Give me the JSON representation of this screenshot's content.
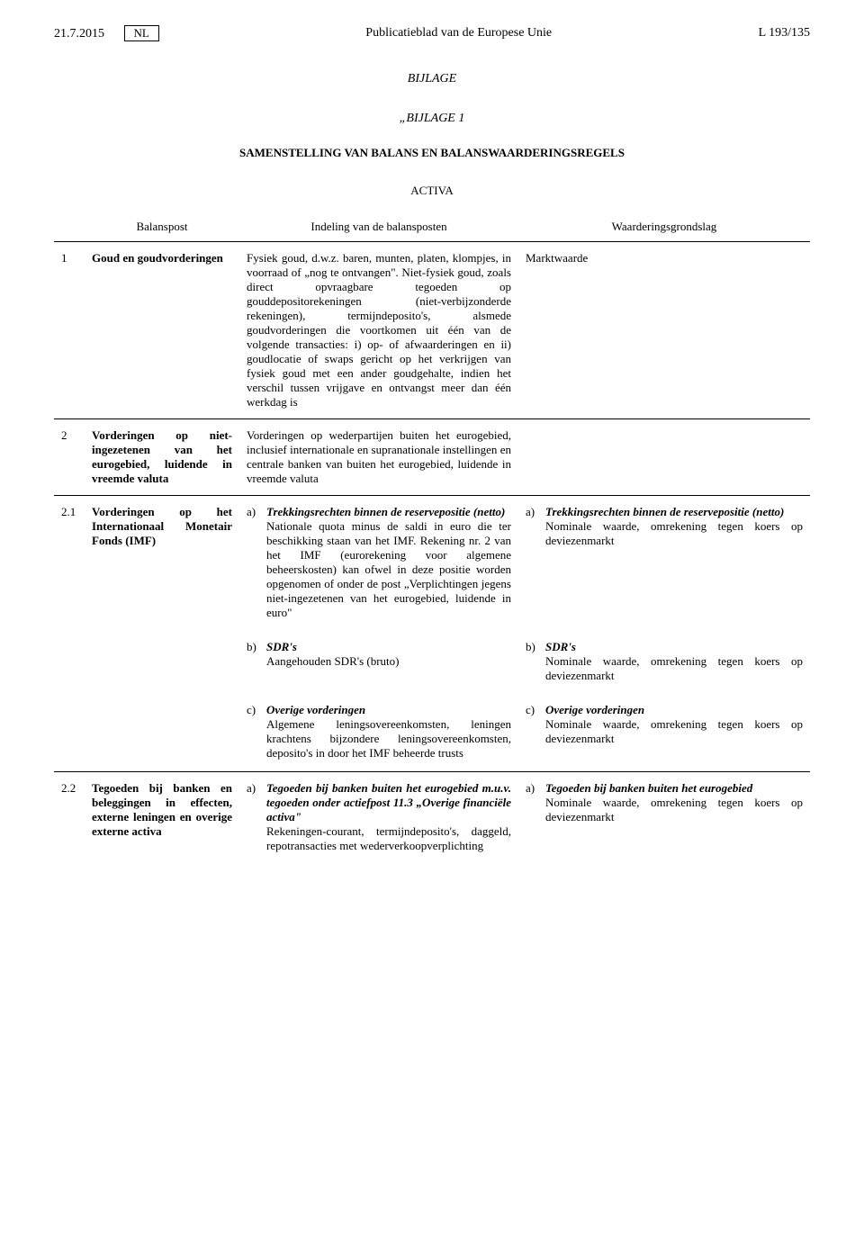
{
  "header": {
    "date": "21.7.2015",
    "lang": "NL",
    "journal": "Publicatieblad van de Europese Unie",
    "ref": "L 193/135"
  },
  "annex": "BIJLAGE",
  "annex_quote": "„BIJLAGE 1",
  "section_title": "SAMENSTELLING VAN BALANS EN BALANSWAARDERINGSREGELS",
  "activa": "ACTIVA",
  "thead": {
    "c1": "Balanspost",
    "c2": "Indeling van de balansposten",
    "c3": "Waarderingsgrondslag"
  },
  "rows": {
    "r1": {
      "num": "1",
      "bp": "Goud en goudvorderingen",
      "ind": "Fysiek goud, d.w.z. baren, munten, platen, klompjes, in voorraad of „nog te ontvangen\". Niet-fysiek goud, zoals direct opvraagbare tegoeden op gouddepositorekeningen (niet-verbijzonderde rekeningen), termijndeposito's, alsmede goudvorderingen die voortkomen uit één van de volgende transacties: i) op- of afwaarderingen en ii) goudlocatie of swaps gericht op het verkrijgen van fysiek goud met een ander goudgehalte, indien het verschil tussen vrijgave en ontvangst meer dan één werkdag is",
      "wg": "Marktwaarde"
    },
    "r2": {
      "num": "2",
      "bp": "Vorderingen op niet-ingezetenen van het eurogebied, luidende in vreemde valuta",
      "ind": "Vorderingen op wederpartijen buiten het eurogebied, inclusief internationale en supranationale instellingen en centrale banken van buiten het eurogebied, luidende in vreemde valuta",
      "wg": ""
    },
    "r21": {
      "num": "2.1",
      "bp": "Vorderingen op het Internationaal Monetair Fonds (IMF)",
      "a_ind_letter": "a)",
      "a_ind_title": "Trekkingsrechten binnen de reservepositie (netto)",
      "a_ind_body": "Nationale quota minus de saldi in euro die ter beschikking staan van het IMF. Rekening nr. 2 van het IMF (eurorekening voor algemene beheerskosten) kan ofwel in deze positie worden opgenomen of onder de post „Verplichtingen jegens niet-ingezetenen van het eurogebied, luidende in euro\"",
      "a_wg_letter": "a)",
      "a_wg_title": "Trekkingsrechten binnen de reservepositie (netto)",
      "a_wg_body": "Nominale waarde, omrekening tegen koers op deviezenmarkt",
      "b_ind_letter": "b)",
      "b_ind_title": "SDR's",
      "b_ind_body": "Aangehouden SDR's (bruto)",
      "b_wg_letter": "b)",
      "b_wg_title": "SDR's",
      "b_wg_body": "Nominale waarde, omrekening tegen koers op deviezenmarkt",
      "c_ind_letter": "c)",
      "c_ind_title": "Overige vorderingen",
      "c_ind_body": "Algemene leningsovereenkomsten, leningen krachtens bijzondere leningsovereenkomsten, deposito's in door het IMF beheerde trusts",
      "c_wg_letter": "c)",
      "c_wg_title": "Overige vorderingen",
      "c_wg_body": "Nominale waarde, omrekening tegen koers op deviezenmarkt"
    },
    "r22": {
      "num": "2.2",
      "bp": "Tegoeden bij banken en beleggingen in effecten, externe leningen en overige externe activa",
      "a_ind_letter": "a)",
      "a_ind_title": "Tegoeden bij banken buiten het eurogebied m.u.v. tegoeden onder actiefpost 11.3 „Overige financiële activa\"",
      "a_ind_body": "Rekeningen-courant, termijndeposito's, daggeld, repotransacties met wederverkoopverplichting",
      "a_wg_letter": "a)",
      "a_wg_title": "Tegoeden bij banken buiten het eurogebied",
      "a_wg_body": "Nominale waarde, omrekening tegen koers op deviezenmarkt"
    }
  }
}
